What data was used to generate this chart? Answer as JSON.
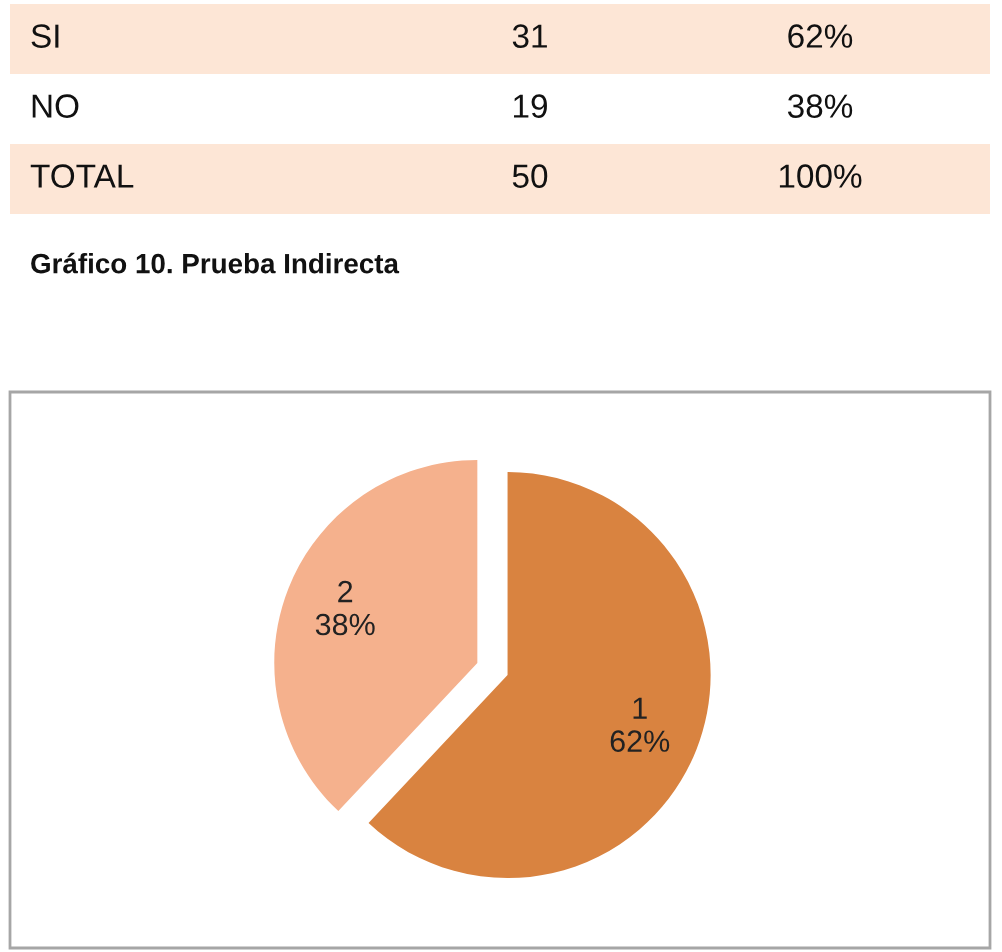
{
  "chart_data": {
    "type": "pie",
    "title": "Gráfico 10. Prueba Indirecta",
    "categories": [
      "1",
      "2"
    ],
    "values": [
      62,
      38
    ],
    "colors": [
      "#d98340",
      "#f5b18d"
    ],
    "value_labels": [
      "62%",
      "38%"
    ],
    "annotations": [
      "SI",
      "31",
      "62%",
      "NO",
      "19",
      "38%",
      "TOTAL",
      "50",
      "100%"
    ]
  }
}
